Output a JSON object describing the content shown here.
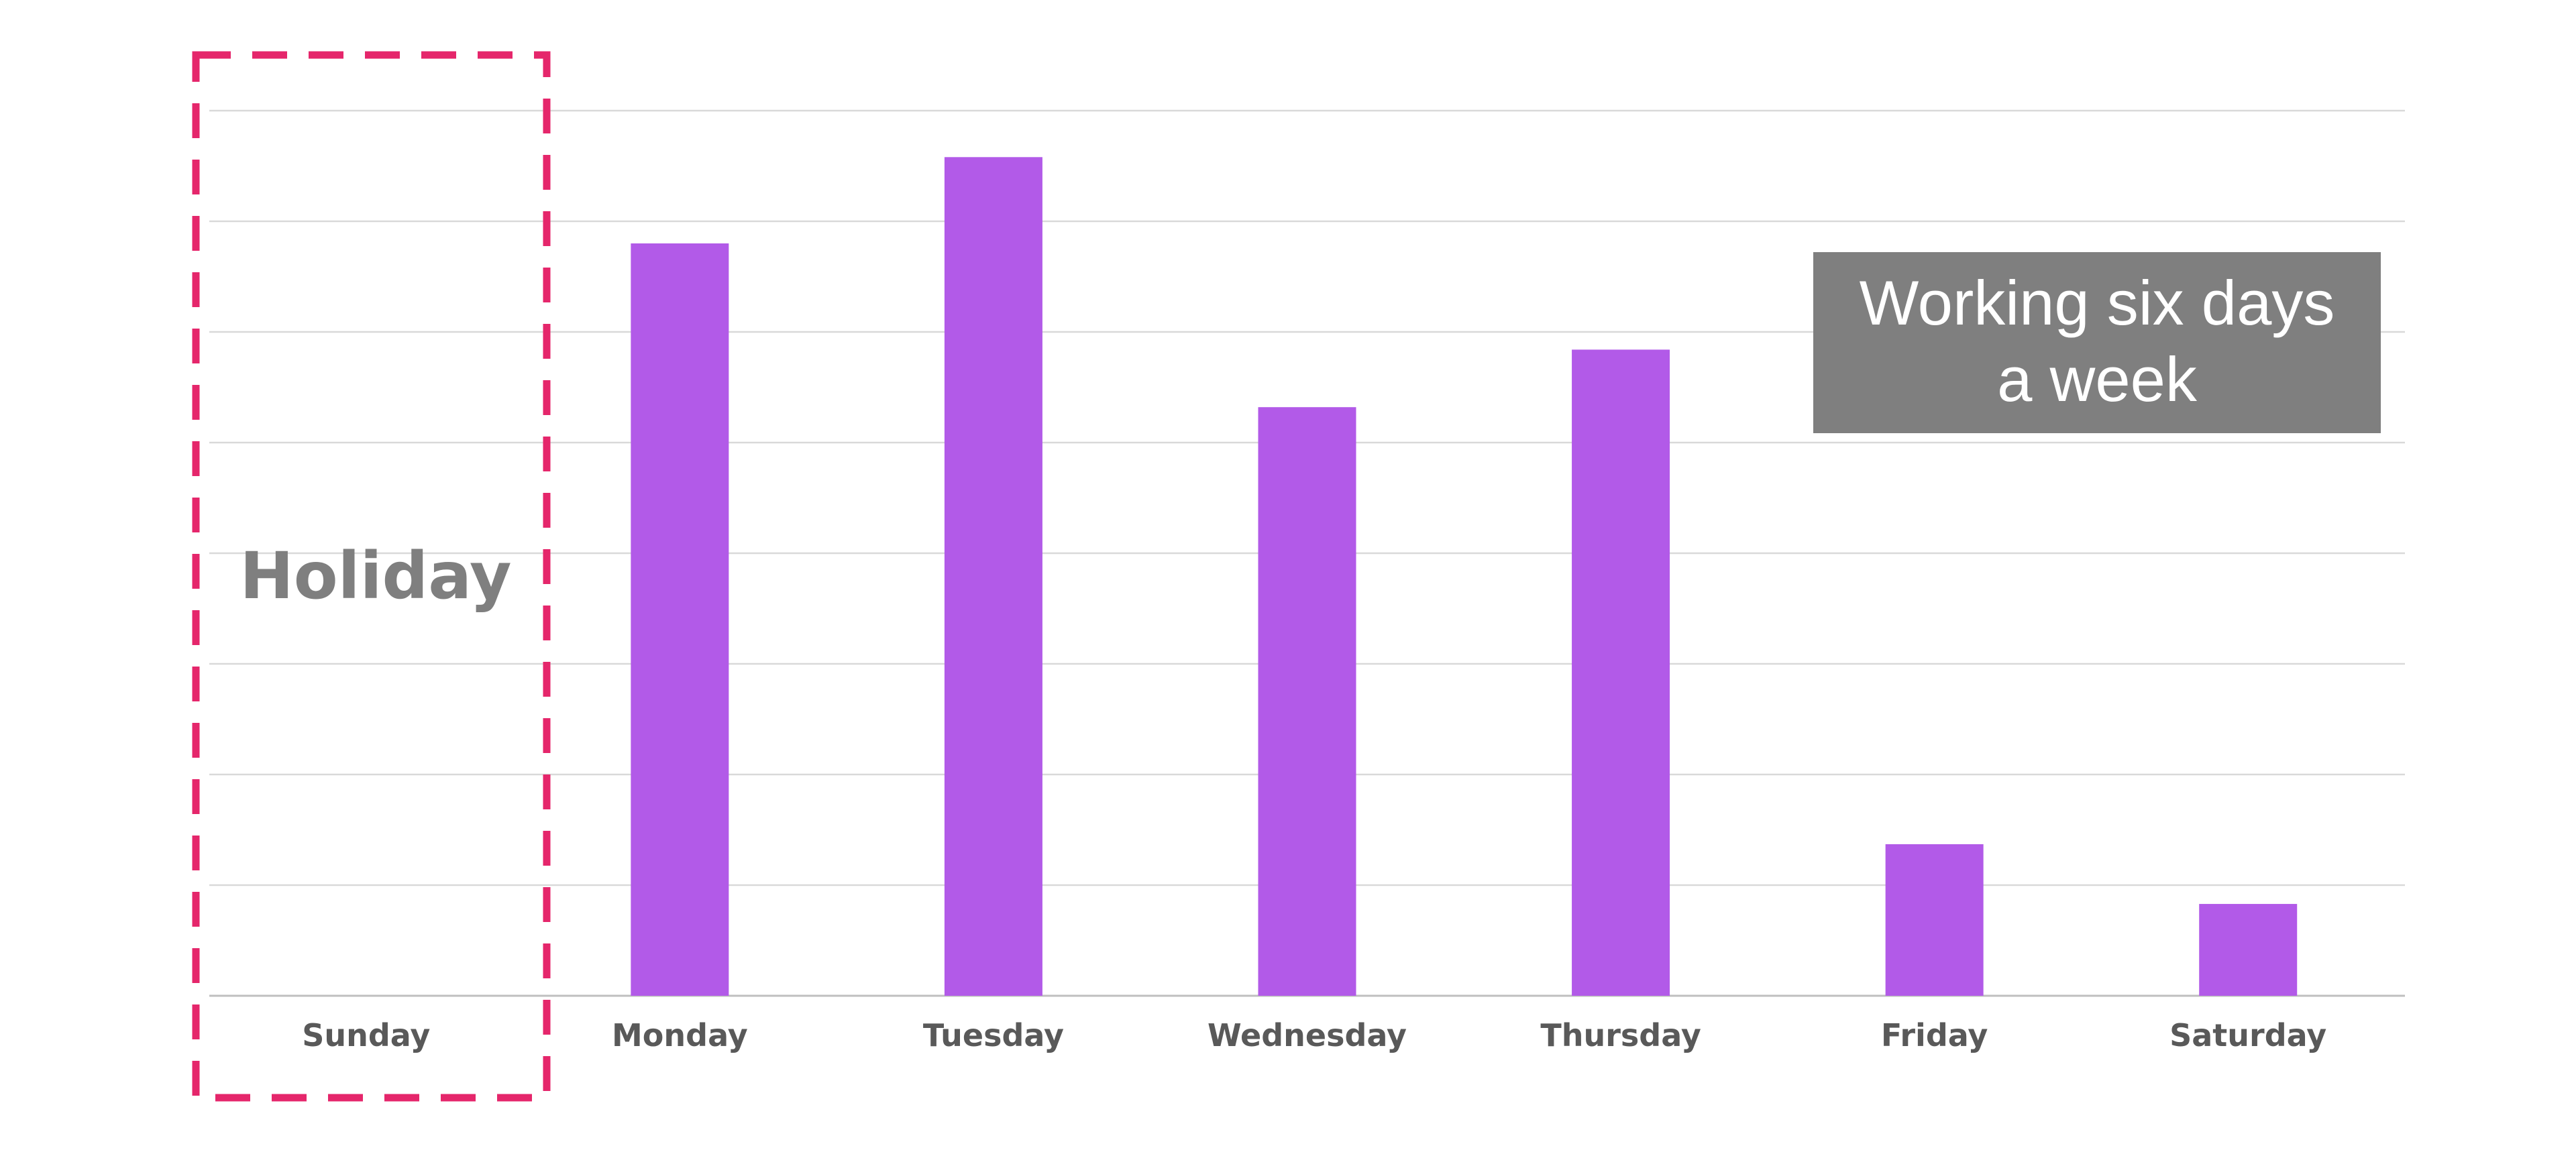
{
  "chart_data": {
    "type": "bar",
    "categories": [
      "Sunday",
      "Monday",
      "Tuesday",
      "Wednesday",
      "Thursday",
      "Friday",
      "Saturday"
    ],
    "values": [
      0,
      6.8,
      7.58,
      5.32,
      5.84,
      1.37,
      0.83
    ],
    "ylim": [
      0,
      8
    ],
    "grid": true,
    "bar_color": "#b25ae8",
    "annotations": {
      "holiday": {
        "label": "Holiday",
        "category": "Sunday",
        "border_color": "#e5266b",
        "label_color": "#7f7f7f"
      },
      "callout": {
        "lines": [
          "Working six days",
          "a week"
        ],
        "background": "#7f7f7f",
        "text_color": "#ffffff"
      }
    }
  }
}
